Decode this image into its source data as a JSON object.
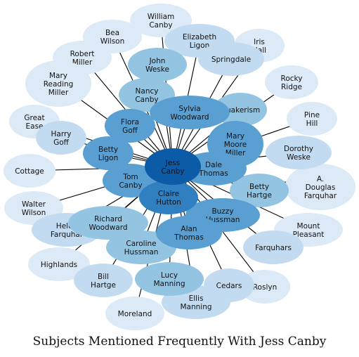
{
  "title": "Subjects Mentioned Frequently With Jess Canby",
  "colors": {
    "hub": "#0b5ba6",
    "tier1": "#2f7fc1",
    "tier2": "#5a9fd1",
    "tier3": "#93c4e2",
    "tier4": "#c3dbf0",
    "tier5": "#dce9f6",
    "edge": "#000000"
  },
  "hub": {
    "id": "jess",
    "label": [
      "Jess",
      "Canby"
    ]
  },
  "nodes": [
    {
      "id": "william-canby",
      "label": [
        "William",
        "Canby"
      ],
      "tier": 5
    },
    {
      "id": "bea-wilson",
      "label": [
        "Bea",
        "Wilson"
      ],
      "tier": 5
    },
    {
      "id": "elizabeth-ligon",
      "label": [
        "Elizabeth",
        "Ligon"
      ],
      "tier": 4
    },
    {
      "id": "iris-hall",
      "label": [
        "Iris",
        "Hall"
      ],
      "tier": 5
    },
    {
      "id": "robert-miller",
      "label": [
        "Robert",
        "Miller"
      ],
      "tier": 5
    },
    {
      "id": "john-weske",
      "label": [
        "John",
        "Weske"
      ],
      "tier": 3
    },
    {
      "id": "springdale",
      "label": [
        "Springdale"
      ],
      "tier": 4
    },
    {
      "id": "mary-reading-miller",
      "label": [
        "Mary",
        "Reading",
        "Miller"
      ],
      "tier": 5
    },
    {
      "id": "rocky-ridge",
      "label": [
        "Rocky",
        "Ridge"
      ],
      "tier": 5
    },
    {
      "id": "nancy-canby",
      "label": [
        "Nancy",
        "Canby"
      ],
      "tier": 3
    },
    {
      "id": "sylvia-woodward",
      "label": [
        "Sylvia",
        "Woodward"
      ],
      "tier": 2
    },
    {
      "id": "quakerism",
      "label": [
        "Quakerism"
      ],
      "tier": 3
    },
    {
      "id": "great-ease",
      "label": [
        "Great",
        "Ease"
      ],
      "tier": 5
    },
    {
      "id": "flora-goff",
      "label": [
        "Flora",
        "Goff"
      ],
      "tier": 2
    },
    {
      "id": "pine-hill",
      "label": [
        "Pine",
        "Hill"
      ],
      "tier": 5
    },
    {
      "id": "harry-goff",
      "label": [
        "Harry",
        "Goff"
      ],
      "tier": 4
    },
    {
      "id": "mary-moore-miller",
      "label": [
        "Mary",
        "Moore",
        "Miller"
      ],
      "tier": 2
    },
    {
      "id": "dorothy-weske",
      "label": [
        "Dorothy",
        "Weske"
      ],
      "tier": 4
    },
    {
      "id": "betty-ligon",
      "label": [
        "Betty",
        "Ligon"
      ],
      "tier": 2
    },
    {
      "id": "cottage",
      "label": [
        "Cottage"
      ],
      "tier": 5
    },
    {
      "id": "dale-thomas",
      "label": [
        "Dale",
        "Thomas"
      ],
      "tier": 2
    },
    {
      "id": "tom-canby",
      "label": [
        "Tom",
        "Canby"
      ],
      "tier": 2
    },
    {
      "id": "a-douglas-farquhar",
      "label": [
        "A.",
        "Douglas",
        "Farquhar"
      ],
      "tier": 5
    },
    {
      "id": "claire-hutton",
      "label": [
        "Claire",
        "Hutton"
      ],
      "tier": 1
    },
    {
      "id": "betty-hartge",
      "label": [
        "Betty",
        "Hartge"
      ],
      "tier": 3
    },
    {
      "id": "walter-wilson",
      "label": [
        "Walter",
        "Wilson"
      ],
      "tier": 5
    },
    {
      "id": "helen-farquhar",
      "label": [
        "Helen",
        "Farquhar"
      ],
      "tier": 4
    },
    {
      "id": "richard-woodward",
      "label": [
        "Richard",
        "Woodward"
      ],
      "tier": 3
    },
    {
      "id": "buzzy-hussman",
      "label": [
        "Buzzy",
        "Hussman"
      ],
      "tier": 2
    },
    {
      "id": "mount-pleasant",
      "label": [
        "Mount",
        "Pleasant"
      ],
      "tier": 5
    },
    {
      "id": "alan-thomas",
      "label": [
        "Alan",
        "Thomas"
      ],
      "tier": 2
    },
    {
      "id": "caroline-hussman",
      "label": [
        "Caroline",
        "Hussman"
      ],
      "tier": 3
    },
    {
      "id": "farquhars",
      "label": [
        "Farquhars"
      ],
      "tier": 4
    },
    {
      "id": "highlands",
      "label": [
        "Highlands"
      ],
      "tier": 5
    },
    {
      "id": "bill-hartge",
      "label": [
        "Bill",
        "Hartge"
      ],
      "tier": 4
    },
    {
      "id": "lucy-manning",
      "label": [
        "Lucy",
        "Manning"
      ],
      "tier": 3
    },
    {
      "id": "cedars",
      "label": [
        "Cedars"
      ],
      "tier": 4
    },
    {
      "id": "roslyn",
      "label": [
        "Roslyn"
      ],
      "tier": 5
    },
    {
      "id": "ellis-manning",
      "label": [
        "Ellis",
        "Manning"
      ],
      "tier": 4
    },
    {
      "id": "moreland",
      "label": [
        "Moreland"
      ],
      "tier": 5
    }
  ]
}
